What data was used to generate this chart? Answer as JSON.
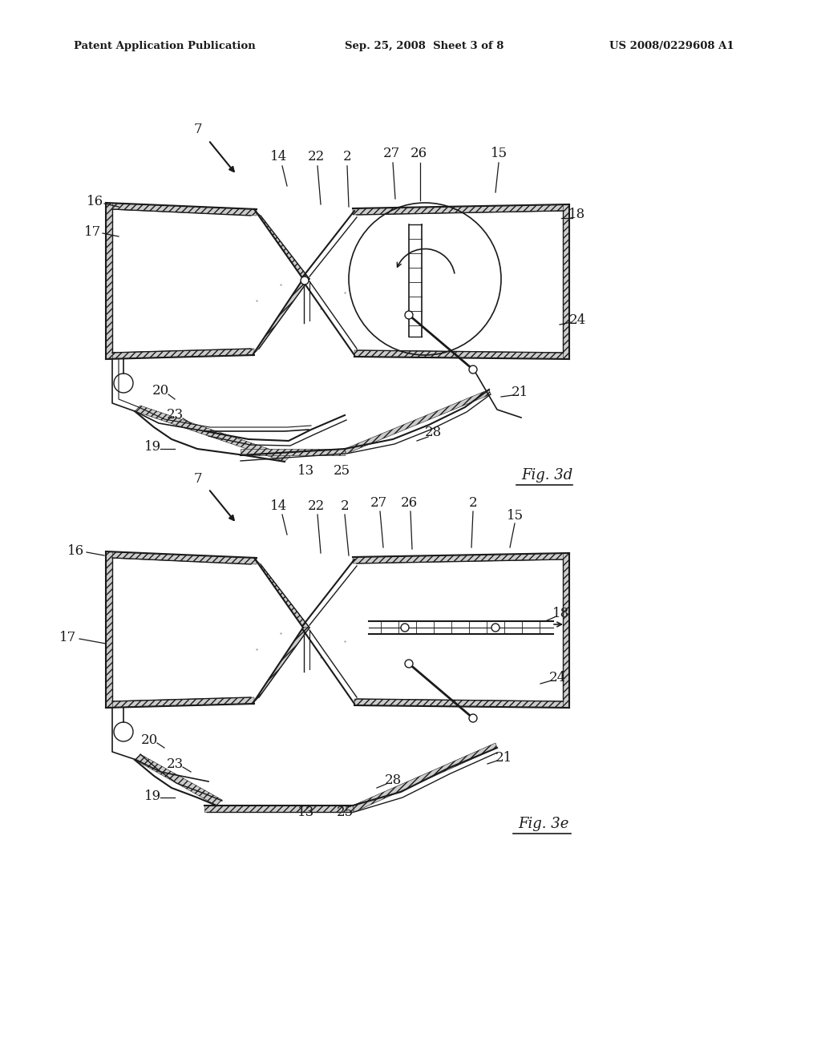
{
  "bg_color": "#ffffff",
  "text_color": "#1a1a1a",
  "header_left": "Patent Application Publication",
  "header_mid": "Sep. 25, 2008  Sheet 3 of 8",
  "header_right": "US 2008/0229608 A1",
  "fig3d_label": "Fig. 3d",
  "fig3e_label": "Fig. 3e",
  "figsize": [
    10.24,
    13.2
  ],
  "dpi": 100
}
